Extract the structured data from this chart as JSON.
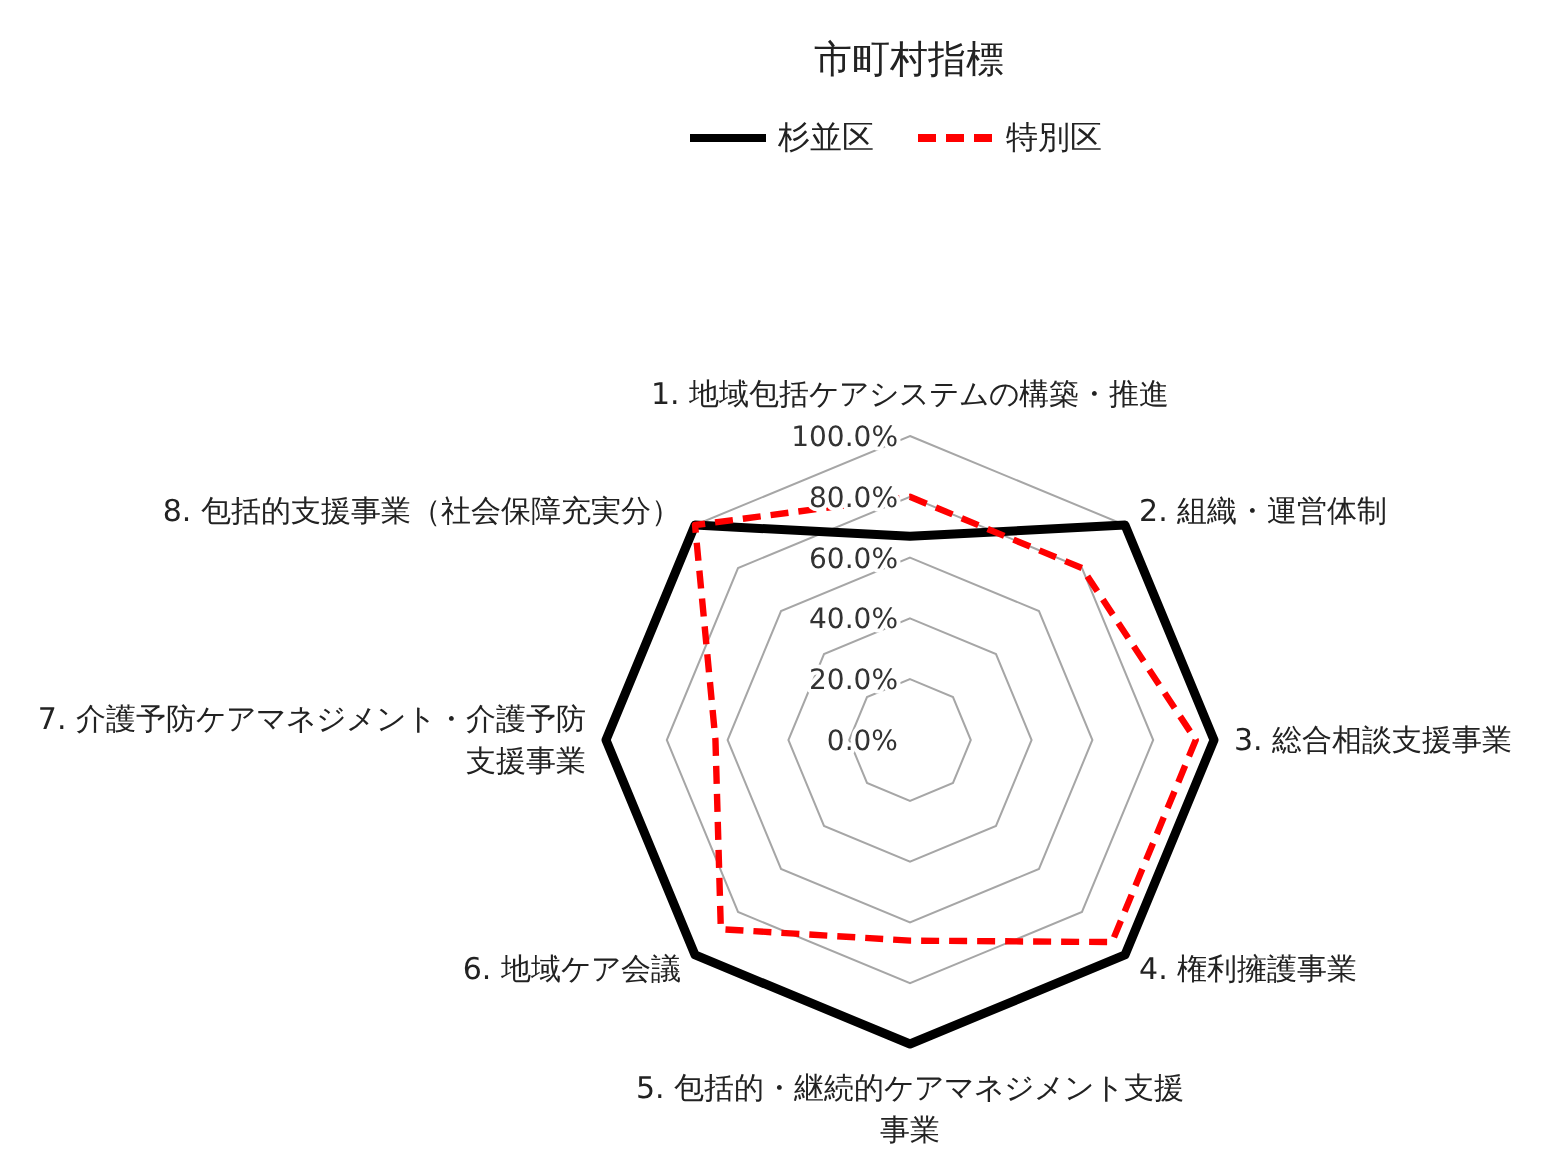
{
  "chart_data": {
    "type": "radar",
    "title": "市町村指標",
    "categories": [
      "1. 地域包括ケアシステムの構築・推進",
      "2. 組織・運営体制",
      "3. 総合相談支援事業",
      "4. 権利擁護事業",
      "5. 包括的・継続的ケアマネジメント支援事業",
      "6. 地域ケア会議",
      "7. 介護予防ケアマネジメント・介護予防支援事業",
      "8. 包括的支援事業（社会保障充実分）"
    ],
    "series": [
      {
        "name": "杉並区",
        "color": "#000000",
        "line_style": "solid",
        "values": [
          67,
          100,
          100,
          100,
          100,
          100,
          100,
          100
        ]
      },
      {
        "name": "特別区",
        "color": "#ff0000",
        "line_style": "dashed",
        "values": [
          80,
          80,
          94,
          94,
          66,
          88,
          64,
          100
        ]
      }
    ],
    "ylim": [
      0,
      100
    ],
    "yticks": [
      {
        "value": 0,
        "label": "0.0%"
      },
      {
        "value": 20,
        "label": "20.0%"
      },
      {
        "value": 40,
        "label": "40.0%"
      },
      {
        "value": 60,
        "label": "60.0%"
      },
      {
        "value": 80,
        "label": "80.0%"
      },
      {
        "value": 100,
        "label": "100.0%"
      }
    ],
    "legend": "top"
  }
}
